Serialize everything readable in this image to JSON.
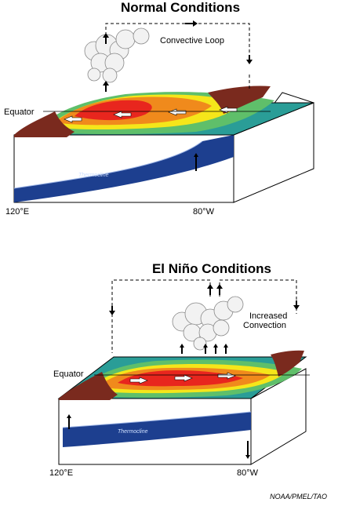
{
  "normal": {
    "title": "Normal Conditions",
    "loop_label": "Convective Loop",
    "equator_label": "Equator",
    "lon_west": "120°E",
    "lon_east": "80°W",
    "thermocline": "Thermocline"
  },
  "nino": {
    "title": "El Niño Conditions",
    "convection_label_1": "Increased",
    "convection_label_2": "Convection",
    "equator_label": "Equator",
    "lon_west": "120°E",
    "lon_east": "80°W",
    "thermocline": "Thermocline"
  },
  "credit": "NOAA/PMEL/TAO",
  "colors": {
    "warm_red": "#e8261e",
    "orange": "#f08a1c",
    "yellow": "#f5e61a",
    "green": "#5fbf6a",
    "teal": "#2a9d97",
    "land": "#7a2a1e",
    "deep_blue": "#1d3f8f"
  }
}
